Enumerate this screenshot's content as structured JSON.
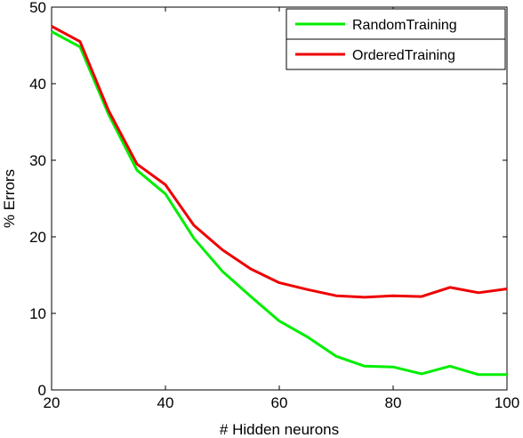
{
  "chart_data": {
    "type": "line",
    "title": "",
    "xlabel": "# Hidden neurons",
    "ylabel": "% Errors",
    "xlim": [
      20,
      100
    ],
    "ylim": [
      0,
      50
    ],
    "x_ticks": [
      20,
      40,
      60,
      80,
      100
    ],
    "y_ticks": [
      0,
      10,
      20,
      30,
      40,
      50
    ],
    "grid": false,
    "legend_position": "top-right",
    "x": [
      20,
      25,
      30,
      35,
      40,
      45,
      50,
      55,
      60,
      65,
      70,
      75,
      80,
      85,
      90,
      95,
      100
    ],
    "series": [
      {
        "name": "RandomTraining",
        "color": "#00ee00",
        "values": [
          46.8,
          44.8,
          36.0,
          28.7,
          25.6,
          19.8,
          15.5,
          12.2,
          9.0,
          6.9,
          4.4,
          3.1,
          3.0,
          2.1,
          3.1,
          2.0,
          2.0
        ]
      },
      {
        "name": "OrderedTraining",
        "color": "#ee0000",
        "values": [
          47.5,
          45.5,
          36.5,
          29.5,
          26.8,
          21.5,
          18.3,
          15.8,
          14.0,
          13.1,
          12.3,
          12.1,
          12.3,
          12.2,
          13.4,
          12.7,
          13.2
        ]
      }
    ]
  }
}
